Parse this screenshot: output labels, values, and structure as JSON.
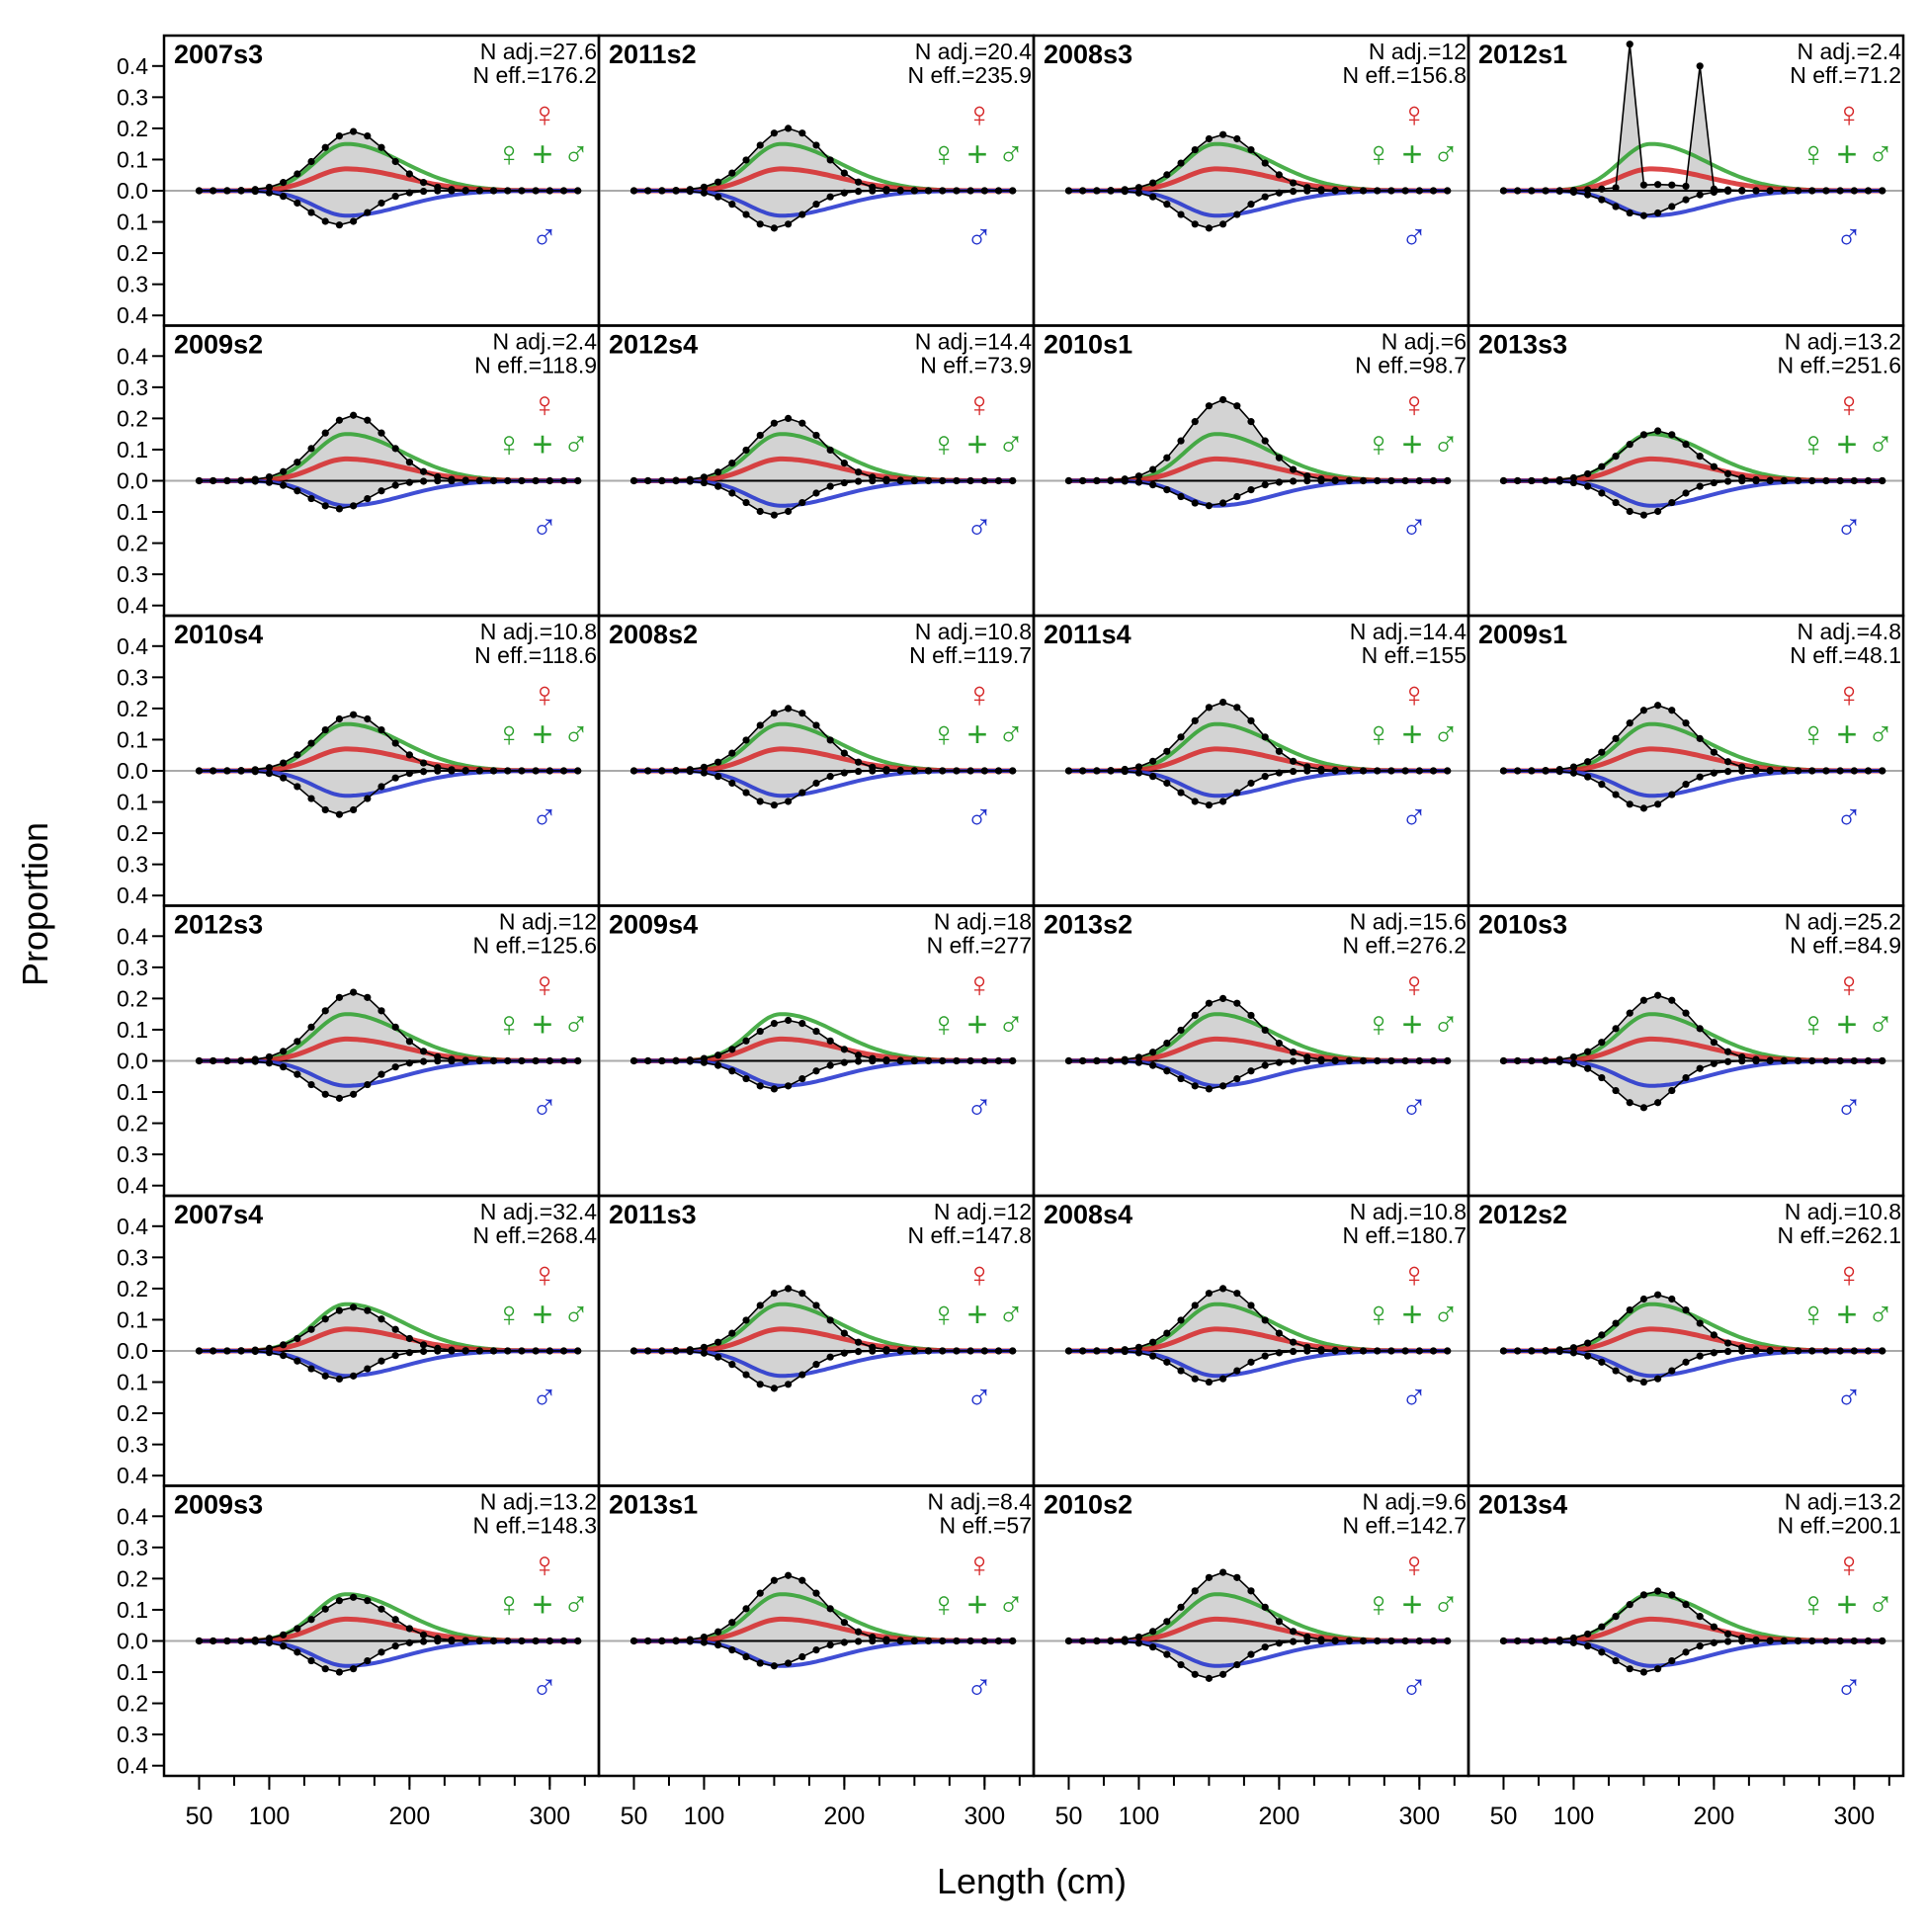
{
  "chart_data": {
    "type": "area",
    "ylabel": "Proportion",
    "xlabel": "Length (cm)",
    "x_ticks": [
      50,
      100,
      200,
      300
    ],
    "y_ticks": [
      "0.4",
      "0.3",
      "0.2",
      "0.1",
      "0.0",
      "0.1",
      "0.2",
      "0.3",
      "0.4"
    ],
    "xlim": [
      25,
      335
    ],
    "ylim_female": [
      0,
      0.45
    ],
    "ylim_male": [
      0,
      0.4
    ],
    "grid": false,
    "bins": [
      50,
      60,
      70,
      80,
      90,
      100,
      110,
      120,
      130,
      140,
      150,
      160,
      170,
      180,
      190,
      200,
      210,
      220,
      230,
      240,
      250,
      260,
      270,
      280,
      290,
      300,
      310,
      320
    ],
    "legend_symbols": {
      "female": "♀",
      "combined": "♀ + ♂",
      "male": "♂"
    },
    "series_colors": {
      "female": "#d62728",
      "combined": "#2ca02c",
      "male": "#1f2fcc",
      "observed": "#000000",
      "fill": "#d3d3d3"
    },
    "panel_defaults": {
      "mean": 155,
      "sd": 28,
      "peak_total": 0.15,
      "peak_female": 0.07,
      "peak_male": 0.08
    },
    "panels": [
      {
        "label": "2007s3",
        "n_adj": "N adj.=27.6",
        "n_eff": "N eff.=176.2",
        "peak_female": 0.19,
        "peak_male": 0.11
      },
      {
        "label": "2009s2",
        "n_adj": "N adj.=2.4",
        "n_eff": "N eff.=118.9",
        "peak_female": 0.21,
        "peak_male": 0.09
      },
      {
        "label": "2010s4",
        "n_adj": "N adj.=10.8",
        "n_eff": "N eff.=118.6",
        "peak_female": 0.18,
        "peak_male": 0.14
      },
      {
        "label": "2012s3",
        "n_adj": "N adj.=12",
        "n_eff": "N eff.=125.6",
        "peak_female": 0.22,
        "peak_male": 0.12
      },
      {
        "label": "2007s4",
        "n_adj": "N adj.=32.4",
        "n_eff": "N eff.=268.4",
        "peak_female": 0.14,
        "peak_male": 0.09
      },
      {
        "label": "2009s3",
        "n_adj": "N adj.=13.2",
        "n_eff": "N eff.=148.3",
        "peak_female": 0.14,
        "peak_male": 0.1
      },
      {
        "label": "2011s2",
        "n_adj": "N adj.=20.4",
        "n_eff": "N eff.=235.9",
        "peak_female": 0.2,
        "peak_male": 0.12
      },
      {
        "label": "2012s4",
        "n_adj": "N adj.=14.4",
        "n_eff": "N eff.=73.9",
        "peak_female": 0.2,
        "peak_male": 0.11
      },
      {
        "label": "2008s2",
        "n_adj": "N adj.=10.8",
        "n_eff": "N eff.=119.7",
        "peak_female": 0.2,
        "peak_male": 0.11
      },
      {
        "label": "2009s4",
        "n_adj": "N adj.=18",
        "n_eff": "N eff.=277",
        "peak_female": 0.13,
        "peak_male": 0.09
      },
      {
        "label": "2011s3",
        "n_adj": "N adj.=12",
        "n_eff": "N eff.=147.8",
        "peak_female": 0.2,
        "peak_male": 0.12
      },
      {
        "label": "2013s1",
        "n_adj": "N adj.=8.4",
        "n_eff": "N eff.=57",
        "peak_female": 0.21,
        "peak_male": 0.08
      },
      {
        "label": "2008s3",
        "n_adj": "N adj.=12",
        "n_eff": "N eff.=156.8",
        "peak_female": 0.18,
        "peak_male": 0.12
      },
      {
        "label": "2010s1",
        "n_adj": "N adj.=6",
        "n_eff": "N eff.=98.7",
        "peak_female": 0.26,
        "peak_male": 0.08
      },
      {
        "label": "2011s4",
        "n_adj": "N adj.=14.4",
        "n_eff": "N eff.=155",
        "peak_female": 0.22,
        "peak_male": 0.11
      },
      {
        "label": "2013s2",
        "n_adj": "N adj.=15.6",
        "n_eff": "N eff.=276.2",
        "peak_female": 0.2,
        "peak_male": 0.09
      },
      {
        "label": "2008s4",
        "n_adj": "N adj.=10.8",
        "n_eff": "N eff.=180.7",
        "peak_female": 0.2,
        "peak_male": 0.1
      },
      {
        "label": "2010s2",
        "n_adj": "N adj.=9.6",
        "n_eff": "N eff.=142.7",
        "peak_female": 0.22,
        "peak_male": 0.12
      },
      {
        "label": "2012s1",
        "n_adj": "N adj.=2.4",
        "n_eff": "N eff.=71.2",
        "peak_female": 0.47,
        "peak_male": 0.08,
        "spikes": [
          [
            140,
            0.47
          ],
          [
            190,
            0.4
          ]
        ]
      },
      {
        "label": "2013s3",
        "n_adj": "N adj.=13.2",
        "n_eff": "N eff.=251.6",
        "peak_female": 0.16,
        "peak_male": 0.11
      },
      {
        "label": "2009s1",
        "n_adj": "N adj.=4.8",
        "n_eff": "N eff.=48.1",
        "peak_female": 0.21,
        "peak_male": 0.12
      },
      {
        "label": "2010s3",
        "n_adj": "N adj.=25.2",
        "n_eff": "N eff.=84.9",
        "peak_female": 0.21,
        "peak_male": 0.15
      },
      {
        "label": "2012s2",
        "n_adj": "N adj.=10.8",
        "n_eff": "N eff.=262.1",
        "peak_female": 0.18,
        "peak_male": 0.1
      },
      {
        "label": "2013s4",
        "n_adj": "N adj.=13.2",
        "n_eff": "N eff.=200.1",
        "peak_female": 0.16,
        "peak_male": 0.1
      }
    ]
  }
}
